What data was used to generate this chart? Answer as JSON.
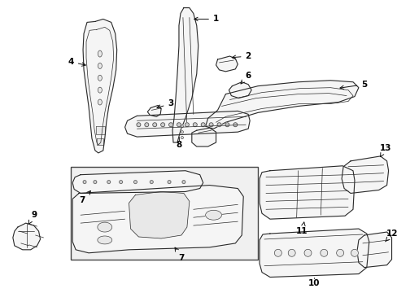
{
  "bg_color": "#ffffff",
  "fig_width": 4.89,
  "fig_height": 3.6,
  "dpi": 100,
  "line_color": "#2a2a2a",
  "label_color": "#000000",
  "font_size": 7.5,
  "inset_bg": "#f0f0f0",
  "part_fill": "#f5f5f5",
  "part_fill2": "#e8e8e8",
  "arrow_color": "#111111"
}
